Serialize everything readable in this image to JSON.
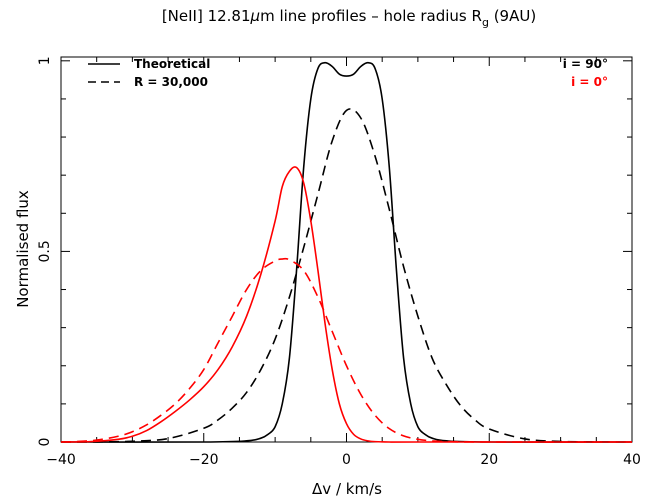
{
  "chart_data": {
    "type": "line",
    "title": {
      "prefix": "[NeII] 12.81",
      "mu": "μ",
      "middle": "m line profiles – hole radius R",
      "subscript": "g",
      "suffix": " (9AU)"
    },
    "xlabel": "Δv / km/s",
    "ylabel": "Normalised flux",
    "xlim": [
      -40,
      40
    ],
    "ylim": [
      0,
      1.01
    ],
    "x_ticks": [
      -40,
      -20,
      0,
      20,
      40
    ],
    "x_tick_labels": [
      "−40",
      "−20",
      "0",
      "20",
      "40"
    ],
    "y_ticks": [
      0,
      0.5,
      1
    ],
    "y_tick_labels": [
      "0",
      "0.5",
      "1"
    ],
    "grid": false,
    "legend": {
      "linestyle_entries": [
        {
          "label": "Theoretical",
          "style": "solid"
        },
        {
          "label": "R = 30,000",
          "style": "dashed"
        }
      ],
      "color_entries": [
        {
          "label": "i = 90°",
          "color": "#000000"
        },
        {
          "label": "i = 0°",
          "color": "#ff0000"
        }
      ],
      "position": "top"
    },
    "colors": {
      "i90": "#000000",
      "i0": "#ff0000"
    },
    "series": [
      {
        "name": "Theoretical i = 90°",
        "color": "#000000",
        "style": "solid",
        "x": [
          -40,
          -20,
          -14,
          -12,
          -11,
          -10,
          -9,
          -8,
          -7,
          -6,
          -5,
          -4,
          -3,
          -2,
          -1,
          0,
          1,
          2,
          3,
          4,
          5,
          6,
          7,
          8,
          9,
          10,
          11,
          12,
          14,
          20,
          40
        ],
        "y": [
          0,
          0,
          0.003,
          0.01,
          0.02,
          0.04,
          0.1,
          0.22,
          0.45,
          0.72,
          0.9,
          0.98,
          0.995,
          0.985,
          0.965,
          0.96,
          0.965,
          0.985,
          0.995,
          0.98,
          0.9,
          0.72,
          0.45,
          0.22,
          0.1,
          0.04,
          0.02,
          0.01,
          0.003,
          0,
          0
        ]
      },
      {
        "name": "R = 30,000 i = 90°",
        "color": "#000000",
        "style": "dashed",
        "x": [
          -40,
          -35,
          -30,
          -25,
          -20,
          -18,
          -16,
          -14,
          -12,
          -10,
          -8,
          -6,
          -4,
          -2,
          0,
          2,
          4,
          6,
          8,
          10,
          12,
          14,
          16,
          18,
          20,
          25,
          30,
          35,
          40
        ],
        "y": [
          0,
          0.0003,
          0.002,
          0.009,
          0.036,
          0.058,
          0.089,
          0.13,
          0.19,
          0.27,
          0.38,
          0.51,
          0.65,
          0.79,
          0.87,
          0.85,
          0.75,
          0.61,
          0.46,
          0.33,
          0.22,
          0.15,
          0.095,
          0.058,
          0.034,
          0.008,
          0.0015,
          0.0002,
          0
        ]
      },
      {
        "name": "Theoretical i = 0°",
        "color": "#ff0000",
        "style": "solid",
        "x": [
          -40,
          -36,
          -32,
          -30,
          -28,
          -26,
          -24,
          -22,
          -20,
          -18,
          -16,
          -14,
          -12,
          -10,
          -9,
          -8,
          -7,
          -6,
          -5,
          -4,
          -3,
          -2,
          -1,
          0,
          1,
          2,
          3,
          4,
          6,
          10,
          40
        ],
        "y": [
          0,
          0.001,
          0.007,
          0.015,
          0.03,
          0.053,
          0.08,
          0.11,
          0.145,
          0.19,
          0.25,
          0.33,
          0.44,
          0.58,
          0.67,
          0.71,
          0.72,
          0.68,
          0.58,
          0.45,
          0.31,
          0.19,
          0.1,
          0.048,
          0.02,
          0.008,
          0.003,
          0.001,
          0,
          0,
          0
        ]
      },
      {
        "name": "R = 30,000 i = 0°",
        "color": "#ff0000",
        "style": "dashed",
        "x": [
          -40,
          -38,
          -35,
          -32,
          -30,
          -28,
          -26,
          -24,
          -22,
          -20,
          -18,
          -16,
          -14,
          -12,
          -10,
          -9,
          -8,
          -6,
          -4,
          -2,
          0,
          2,
          4,
          6,
          8,
          10,
          12,
          14,
          20,
          40
        ],
        "y": [
          0,
          0.001,
          0.005,
          0.015,
          0.027,
          0.045,
          0.07,
          0.1,
          0.14,
          0.19,
          0.26,
          0.33,
          0.4,
          0.45,
          0.475,
          0.48,
          0.478,
          0.45,
          0.38,
          0.29,
          0.2,
          0.125,
          0.07,
          0.035,
          0.016,
          0.007,
          0.003,
          0.001,
          0,
          0
        ]
      }
    ]
  }
}
